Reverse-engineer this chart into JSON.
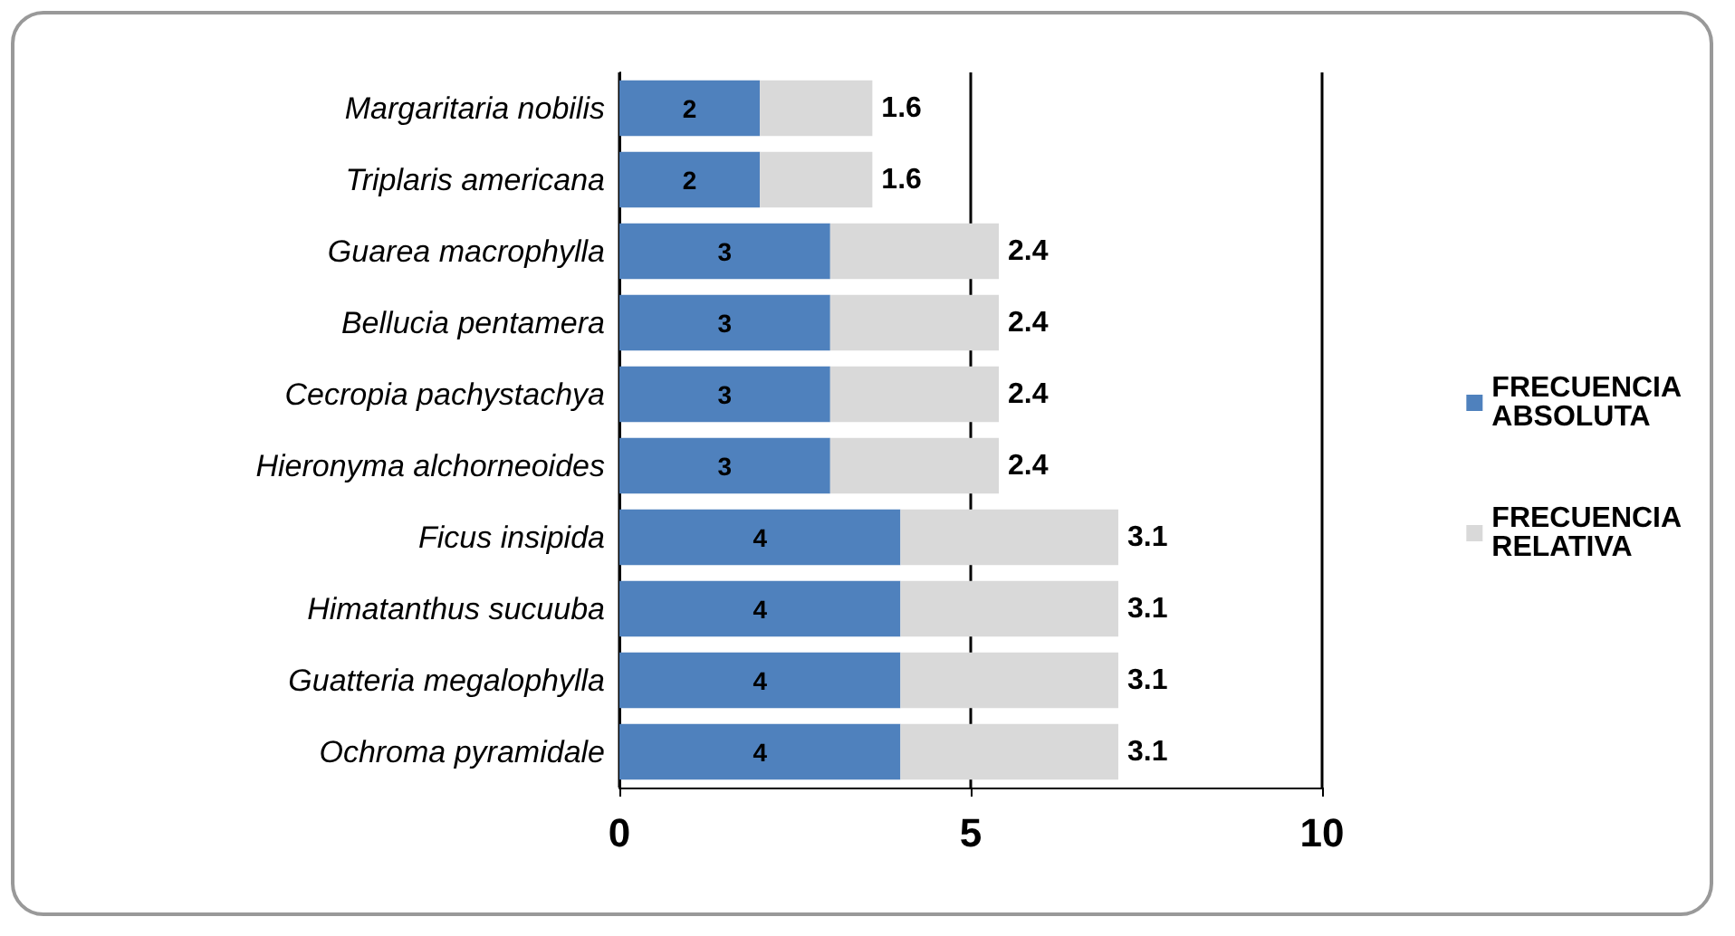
{
  "chart_data": {
    "type": "bar",
    "orientation": "horizontal",
    "stacked": true,
    "categories": [
      "Margaritaria nobilis",
      "Triplaris americana",
      "Guarea macrophylla",
      "Bellucia pentamera",
      "Cecropia pachystachya",
      "Hieronyma alchorneoides",
      "Ficus insipida",
      "Himatanthus sucuuba",
      "Guatteria megalophylla",
      "Ochroma pyramidale"
    ],
    "series": [
      {
        "name": "FRECUENCIA ABSOLUTA",
        "color": "#4f81bd",
        "values": [
          2,
          2,
          3,
          3,
          3,
          3,
          4,
          4,
          4,
          4
        ]
      },
      {
        "name": "FRECUENCIA RELATIVA",
        "color": "#d9d9d9",
        "values": [
          1.6,
          1.6,
          2.4,
          2.4,
          2.4,
          2.4,
          3.1,
          3.1,
          3.1,
          3.1
        ]
      }
    ],
    "xlim": [
      0,
      10
    ],
    "xticks": [
      0,
      5,
      10
    ],
    "grid": "x",
    "legend": "right",
    "data_labels": true
  }
}
